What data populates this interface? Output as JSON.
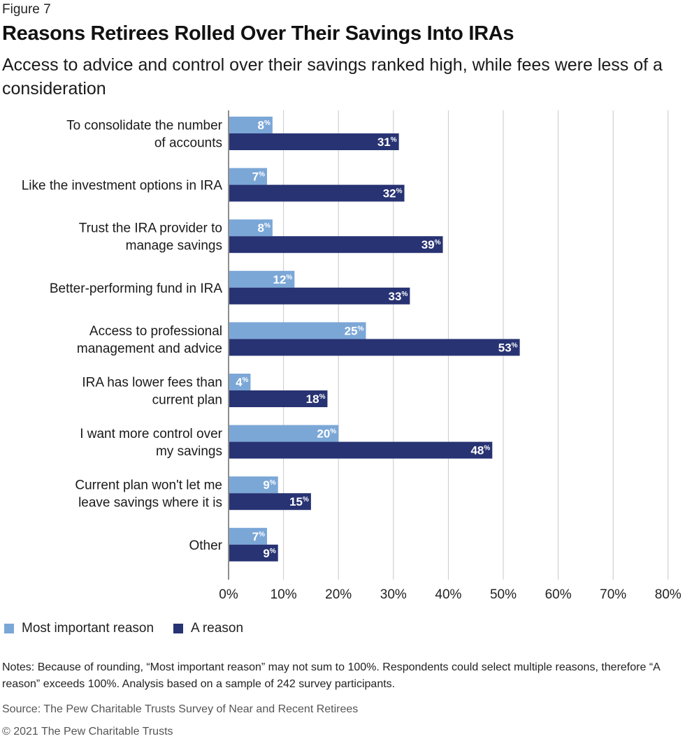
{
  "figure_label": "Figure 7",
  "title": "Reasons Retirees Rolled Over Their Savings Into IRAs",
  "subtitle": "Access to advice and control over their savings ranked high, while fees were less of a consideration",
  "legend": [
    {
      "label": "Most important reason",
      "color": "#7ba7d7"
    },
    {
      "label": "A reason",
      "color": "#283373"
    }
  ],
  "notes": "Notes: Because of rounding, “Most important reason” may not sum to 100%. Respondents could select multiple reasons, therefore “A reason” exceeds 100%. Analysis based on a sample of 242 survey participants.",
  "source": "Source: The Pew Charitable Trusts Survey of Near and Recent Retirees",
  "copyright": "© 2021 The Pew Charitable Trusts",
  "chart_data": {
    "type": "bar",
    "orientation": "horizontal",
    "title": "Reasons Retirees Rolled Over Their Savings Into IRAs",
    "xlabel": "",
    "ylabel": "",
    "xlim": [
      0,
      80
    ],
    "x_ticks": [
      "0%",
      "10%",
      "20%",
      "30%",
      "40%",
      "50%",
      "60%",
      "70%",
      "80%"
    ],
    "grid": "vertical",
    "legend_position": "bottom-left",
    "value_suffix": "%",
    "categories": [
      [
        "To consolidate the number",
        "of accounts"
      ],
      [
        "Like the investment options in IRA"
      ],
      [
        "Trust the IRA provider to",
        "manage savings"
      ],
      [
        "Better-performing fund in IRA"
      ],
      [
        "Access to professional",
        "management and advice"
      ],
      [
        "IRA has lower fees than",
        "current plan"
      ],
      [
        "I want more control over",
        "my savings"
      ],
      [
        "Current plan won't let me",
        "leave savings where it is"
      ],
      [
        "Other"
      ]
    ],
    "series": [
      {
        "name": "Most important reason",
        "color": "#7ba7d7",
        "values": [
          8,
          7,
          8,
          12,
          25,
          4,
          20,
          9,
          7
        ]
      },
      {
        "name": "A reason",
        "color": "#283373",
        "values": [
          31,
          32,
          39,
          33,
          53,
          18,
          48,
          15,
          9
        ]
      }
    ]
  }
}
